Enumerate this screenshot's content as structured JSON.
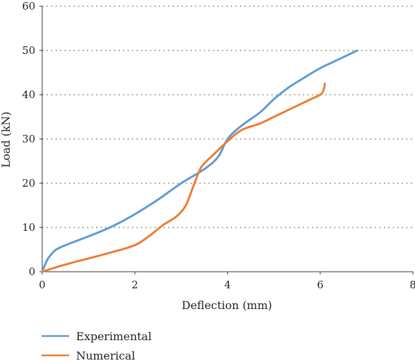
{
  "chart_data": {
    "type": "line",
    "title": "",
    "xlabel": "Deflection (mm)",
    "ylabel": "Load (kN)",
    "xlim": [
      0,
      8
    ],
    "ylim": [
      0,
      60
    ],
    "xticks": [
      0,
      2,
      4,
      6,
      8
    ],
    "yticks": [
      0,
      10,
      20,
      30,
      40,
      50,
      60
    ],
    "xtick_labels": [
      "0",
      "2",
      "4",
      "6",
      "8"
    ],
    "ytick_labels": [
      "0",
      "10",
      "20",
      "30",
      "40",
      "50",
      "60"
    ],
    "grid": "horizontal dotted",
    "legend_position": "bottom-left",
    "series": [
      {
        "name": "Experimental",
        "color": "#5B9BD5",
        "x": [
          0,
          0.1,
          0.2,
          0.3,
          0.5,
          1.0,
          1.5,
          2.0,
          2.5,
          3.0,
          3.5,
          3.8,
          4.0,
          4.3,
          4.7,
          5.0,
          5.3,
          5.6,
          6.0,
          6.4,
          6.8
        ],
        "y": [
          0,
          2.5,
          4.0,
          5.0,
          6.0,
          8.0,
          10.2,
          13.0,
          16.3,
          20.0,
          23.2,
          26.0,
          30.0,
          33.0,
          36.0,
          39.0,
          41.5,
          43.5,
          46.0,
          48.0,
          50.0
        ]
      },
      {
        "name": "Numerical",
        "color": "#ED7D31",
        "x": [
          0,
          0.3,
          0.7,
          1.0,
          1.5,
          2.0,
          2.3,
          2.6,
          2.9,
          3.1,
          3.25,
          3.4,
          3.5,
          3.7,
          4.0,
          4.3,
          4.7,
          5.0,
          5.4,
          5.8,
          6.0,
          6.07,
          6.1
        ],
        "y": [
          0,
          1.0,
          2.2,
          3.0,
          4.4,
          6.0,
          8.0,
          10.5,
          12.5,
          15.0,
          19.0,
          23.0,
          24.5,
          26.5,
          29.5,
          32.0,
          33.5,
          35.0,
          37.0,
          39.0,
          40.0,
          41.0,
          42.5
        ]
      }
    ]
  }
}
